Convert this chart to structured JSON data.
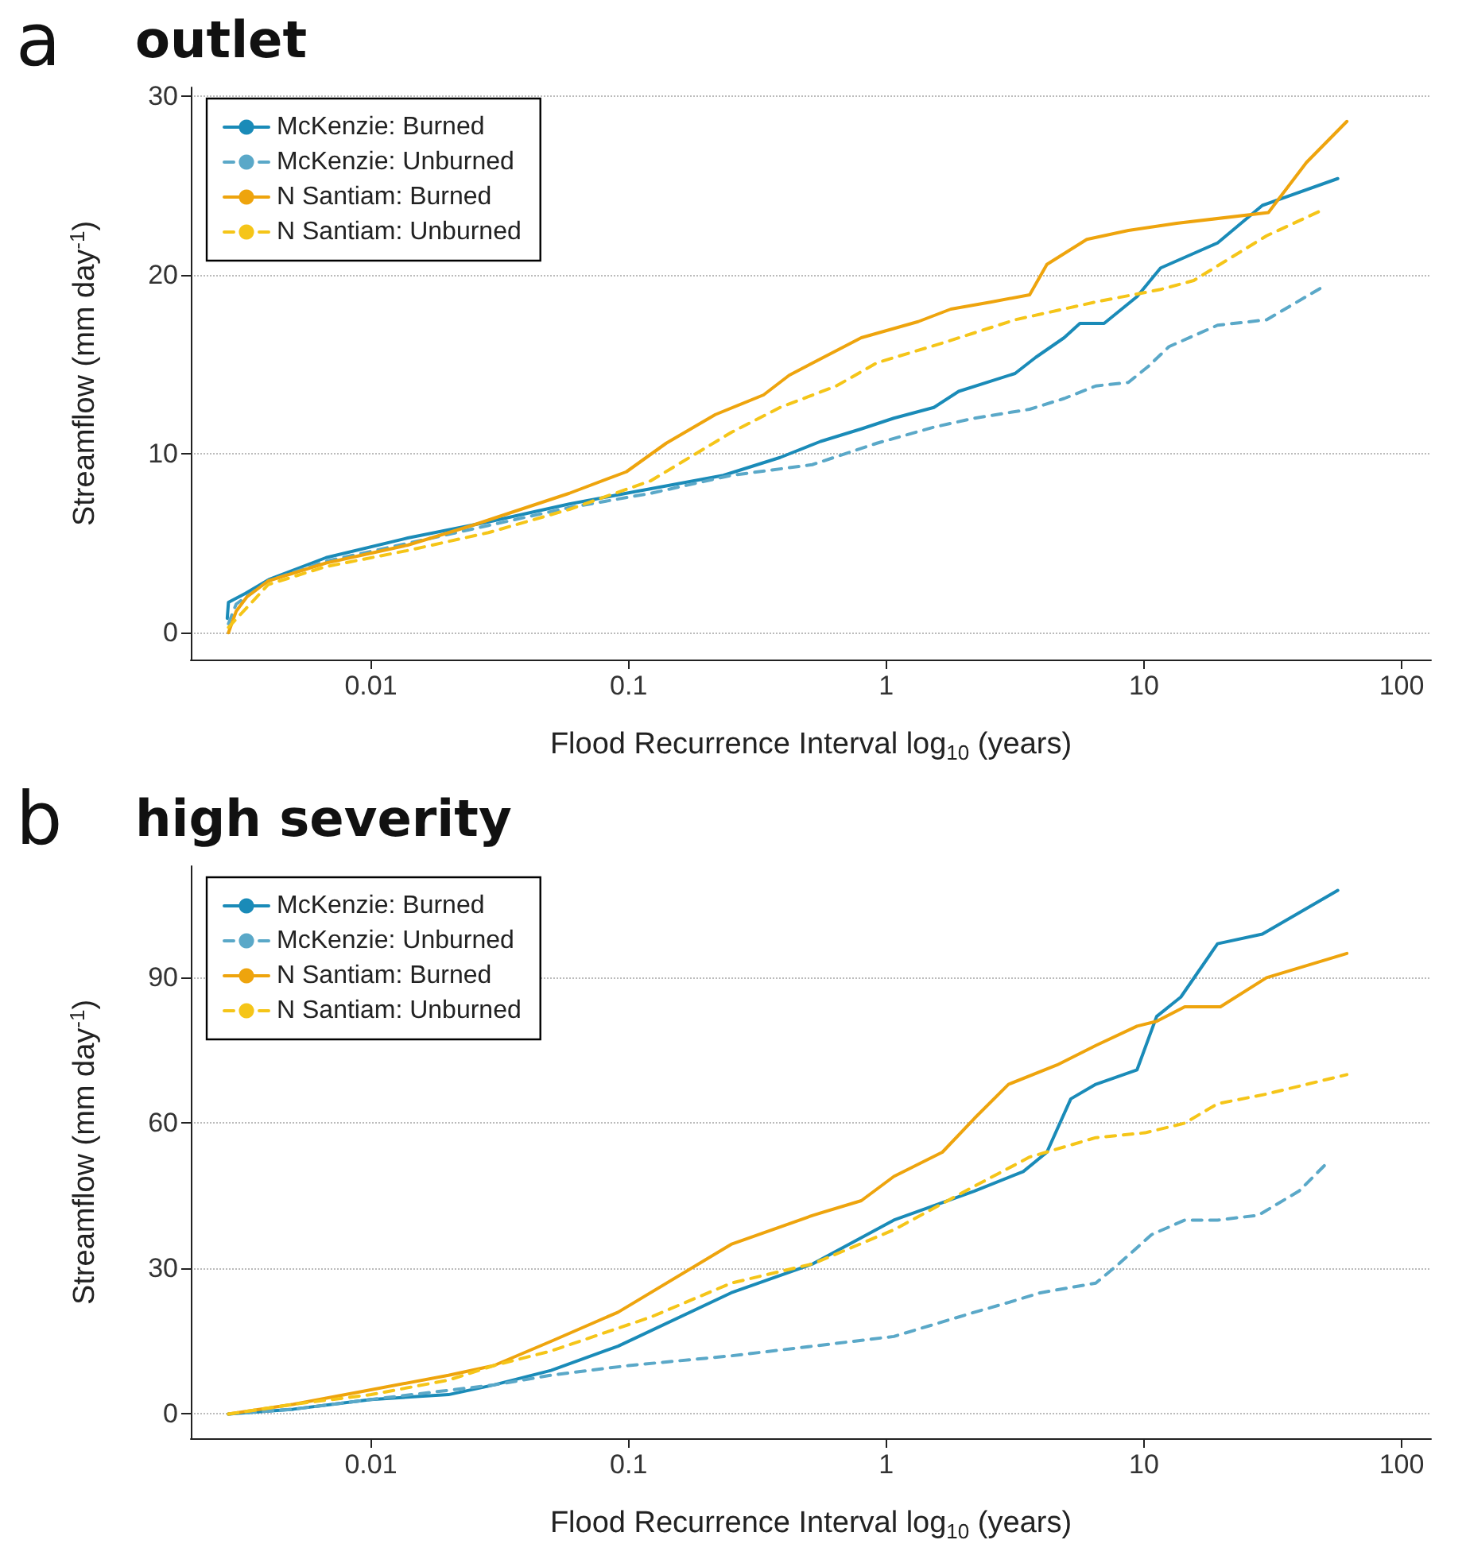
{
  "chart_data": [
    {
      "type": "line",
      "title": "outlet",
      "annotations": [
        "a"
      ],
      "xlabel": "Flood Recurrence Interval log$_{10}$ (years)",
      "ylabel": "Streamflow (mm day$^{-1}$)",
      "log": "x",
      "grid": "y",
      "legend": "top left",
      "marker": "none",
      "xlim": [
        0.002,
        130
      ],
      "xticks": [
        0.01,
        0.1,
        1,
        10,
        100
      ],
      "ylim": [
        -1.5,
        30.5
      ],
      "yticks": [
        0,
        10,
        20,
        30
      ],
      "series": [
        {
          "name": "McKenzie: Burned",
          "color": "#1a8bb8",
          "line_style": "solid",
          "x": [
            0.00277,
            0.0028,
            0.00326,
            0.00405,
            0.0067,
            0.0139,
            0.0286,
            0.0589,
            0.098,
            0.233,
            0.387,
            0.556,
            0.8,
            1.07,
            1.53,
            1.91,
            3.16,
            3.8,
            4.9,
            5.64,
            7.0,
            9.4,
            11.6,
            19.3,
            28.8,
            56.5
          ],
          "values": [
            0.8,
            1.7,
            2.2,
            3,
            4.2,
            5.3,
            6.2,
            7.2,
            7.8,
            8.8,
            9.8,
            10.7,
            11.4,
            12,
            12.6,
            13.5,
            14.5,
            15.4,
            16.5,
            17.3,
            17.3,
            18.8,
            20.4,
            21.8,
            23.9,
            25.4
          ]
        },
        {
          "name": "McKenzie: Unburned",
          "color": "#5aa8c8",
          "line_style": "dashed",
          "x": [
            0.0028,
            0.003,
            0.004,
            0.0067,
            0.0139,
            0.0286,
            0.0589,
            0.122,
            0.25,
            0.516,
            0.92,
            1.53,
            2.2,
            3.6,
            4.9,
            6.5,
            8.7,
            10.4,
            12.5,
            19.3,
            29.9,
            50.2
          ],
          "values": [
            0.5,
            1.6,
            2.9,
            4.0,
            5.0,
            6.0,
            7.0,
            7.8,
            8.8,
            9.4,
            10.6,
            11.5,
            12.0,
            12.5,
            13.1,
            13.8,
            14.0,
            14.9,
            16.0,
            17.2,
            17.5,
            19.4
          ]
        },
        {
          "name": "N Santiam: Burned",
          "color": "#eea40d",
          "line_style": "solid",
          "x": [
            0.0028,
            0.003,
            0.0033,
            0.004,
            0.0067,
            0.0139,
            0.0247,
            0.0589,
            0.098,
            0.14,
            0.217,
            0.334,
            0.42,
            0.8,
            1.33,
            1.78,
            2.56,
            3.6,
            4.2,
            6.0,
            8.7,
            13.4,
            30.4,
            42.7,
            61.3
          ],
          "values": [
            0,
            1.2,
            2.0,
            2.9,
            3.9,
            4.9,
            6.0,
            7.8,
            9.0,
            10.6,
            12.2,
            13.3,
            14.4,
            16.5,
            17.4,
            18.1,
            18.5,
            18.9,
            20.6,
            22.0,
            22.5,
            22.9,
            23.5,
            26.3,
            28.6
          ]
        },
        {
          "name": "N Santiam: Unburned",
          "color": "#f5c518",
          "line_style": "dashed",
          "x": [
            0.0028,
            0.004,
            0.0067,
            0.0139,
            0.0286,
            0.0589,
            0.122,
            0.25,
            0.387,
            0.64,
            0.92,
            1.65,
            3.16,
            6.5,
            11.6,
            15.6,
            29.9,
            50.2
          ],
          "values": [
            0.3,
            2.7,
            3.7,
            4.6,
            5.6,
            6.9,
            8.5,
            11.2,
            12.6,
            13.8,
            15.1,
            16.2,
            17.5,
            18.5,
            19.2,
            19.7,
            22.2,
            23.7
          ]
        }
      ]
    },
    {
      "type": "line",
      "title": "high severity",
      "annotations": [
        "b"
      ],
      "xlabel": "Flood Recurrence Interval log$_{10}$ (years)",
      "ylabel": "Streamflow (mm day$^{-1}$)",
      "log": "x",
      "grid": "y",
      "legend": "top left",
      "marker": "none",
      "xlim": [
        0.002,
        130
      ],
      "xticks": [
        0.01,
        0.1,
        1,
        10,
        100
      ],
      "ylim": [
        -5,
        113
      ],
      "yticks": [
        0,
        30,
        60,
        90
      ],
      "series": [
        {
          "name": "McKenzie: Burned",
          "color": "#1a8bb8",
          "line_style": "solid",
          "x": [
            0.0028,
            0.005,
            0.01,
            0.02,
            0.03,
            0.05,
            0.091,
            0.25,
            0.52,
            1.07,
            2.2,
            3.4,
            4.2,
            5.2,
            6.5,
            9.4,
            11.2,
            13.9,
            19.3,
            28.8,
            56.5
          ],
          "values": [
            0,
            1,
            3,
            4,
            6,
            9,
            14,
            25,
            31,
            40,
            46,
            50,
            54,
            65,
            68,
            71,
            82,
            86,
            97,
            99,
            108
          ]
        },
        {
          "name": "McKenzie: Unburned",
          "color": "#5aa8c8",
          "line_style": "dashed",
          "x": [
            0.0028,
            0.005,
            0.01,
            0.03,
            0.05,
            0.1,
            0.25,
            0.52,
            1.07,
            2.2,
            2.98,
            3.96,
            6.5,
            8.0,
            10.7,
            14.4,
            19.3,
            27.8,
            40,
            51.8
          ],
          "values": [
            0,
            1,
            3,
            6,
            8,
            10,
            12,
            14,
            16,
            21,
            23,
            25,
            27,
            31,
            37,
            40,
            40,
            41,
            46,
            52
          ]
        },
        {
          "name": "N Santiam: Burned",
          "color": "#eea40d",
          "line_style": "solid",
          "x": [
            0.0028,
            0.005,
            0.01,
            0.02,
            0.03,
            0.05,
            0.091,
            0.25,
            0.52,
            0.8,
            1.07,
            1.65,
            2.2,
            2.98,
            4.6,
            6.5,
            9.4,
            11.2,
            14.4,
            19.8,
            29.9,
            61.3
          ],
          "values": [
            0,
            2,
            5,
            8,
            10,
            15,
            21,
            35,
            41,
            44,
            49,
            54,
            61,
            68,
            72,
            76,
            80,
            81,
            84,
            84,
            90,
            95
          ]
        },
        {
          "name": "N Santiam: Unburned",
          "color": "#f5c518",
          "line_style": "dashed",
          "x": [
            0.0028,
            0.005,
            0.01,
            0.02,
            0.03,
            0.05,
            0.122,
            0.25,
            0.52,
            1.07,
            2.2,
            3.6,
            6.5,
            10.1,
            14.4,
            19.3,
            29.9,
            61.3
          ],
          "values": [
            0,
            2,
            4,
            7,
            10,
            13,
            20,
            27,
            31,
            38,
            47,
            53,
            57,
            58,
            60,
            64,
            66,
            70
          ]
        }
      ]
    }
  ]
}
